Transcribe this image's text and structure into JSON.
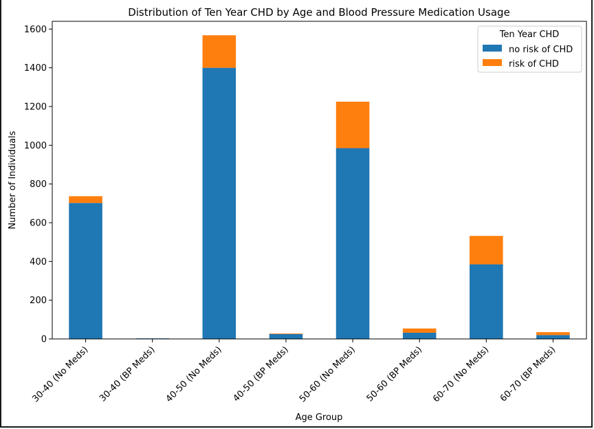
{
  "chart_data": {
    "type": "bar",
    "stacked": true,
    "title": "Distribution of Ten Year CHD by Age and Blood Pressure Medication Usage",
    "xlabel": "Age Group",
    "ylabel": "Number of Individuals",
    "ylim": [
      0,
      1640
    ],
    "yticks": [
      0,
      200,
      400,
      600,
      800,
      1000,
      1200,
      1400,
      1600
    ],
    "categories": [
      "30-40 (No Meds)",
      "30-40 (BP Meds)",
      "40-50 (No Meds)",
      "40-50 (BP Meds)",
      "50-60 (No Meds)",
      "50-60 (BP Meds)",
      "60-70 (No Meds)",
      "60-70 (BP Meds)"
    ],
    "series": [
      {
        "name": "no risk of CHD",
        "color": "#1f77b4",
        "values": [
          702,
          3,
          1400,
          25,
          985,
          32,
          385,
          20
        ]
      },
      {
        "name": "risk of CHD",
        "color": "#ff7f0e",
        "values": [
          35,
          0,
          168,
          3,
          240,
          22,
          147,
          15
        ]
      }
    ],
    "legend": {
      "title": "Ten Year CHD",
      "position": "top-right"
    },
    "grid": false
  }
}
